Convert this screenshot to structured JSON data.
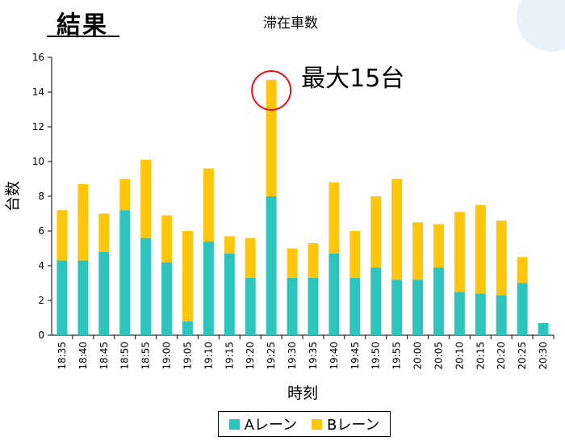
{
  "slide": {
    "title": "結果"
  },
  "colors": {
    "lane_a": "#2EC4BE",
    "lane_b": "#FFC60B",
    "highlight": "#E0121A"
  },
  "chart_data": {
    "type": "bar",
    "stacked": true,
    "title": "滞在車数",
    "xlabel": "時刻",
    "ylabel": "台数",
    "ylim": [
      0,
      16
    ],
    "yticks": [
      0,
      2,
      4,
      6,
      8,
      10,
      12,
      14,
      16
    ],
    "categories": [
      "18:35",
      "18:40",
      "18:45",
      "18:50",
      "18:55",
      "19:00",
      "19:05",
      "19:10",
      "19:15",
      "19:20",
      "19:25",
      "19:30",
      "19:35",
      "19:40",
      "19:45",
      "19:50",
      "19:55",
      "20:00",
      "20:05",
      "20:10",
      "20:15",
      "20:20",
      "20:25",
      "20:30"
    ],
    "series": [
      {
        "name": "Aレーン",
        "values": [
          4.3,
          4.3,
          4.8,
          7.2,
          5.6,
          4.2,
          0.8,
          5.4,
          4.7,
          3.3,
          8.0,
          3.3,
          3.3,
          4.7,
          3.3,
          3.9,
          3.2,
          3.2,
          3.9,
          2.5,
          2.4,
          2.3,
          3.0,
          0.7
        ]
      },
      {
        "name": "Bレーン",
        "values": [
          2.9,
          4.4,
          2.2,
          1.8,
          4.5,
          2.7,
          5.2,
          4.2,
          1.0,
          2.3,
          6.7,
          1.7,
          2.0,
          4.1,
          2.7,
          4.1,
          5.8,
          3.3,
          2.5,
          4.6,
          5.1,
          4.3,
          1.5,
          0.0
        ]
      }
    ],
    "grid": false,
    "legend": "bottom",
    "annotation": {
      "text": "最大15台",
      "category": "19:25"
    }
  }
}
